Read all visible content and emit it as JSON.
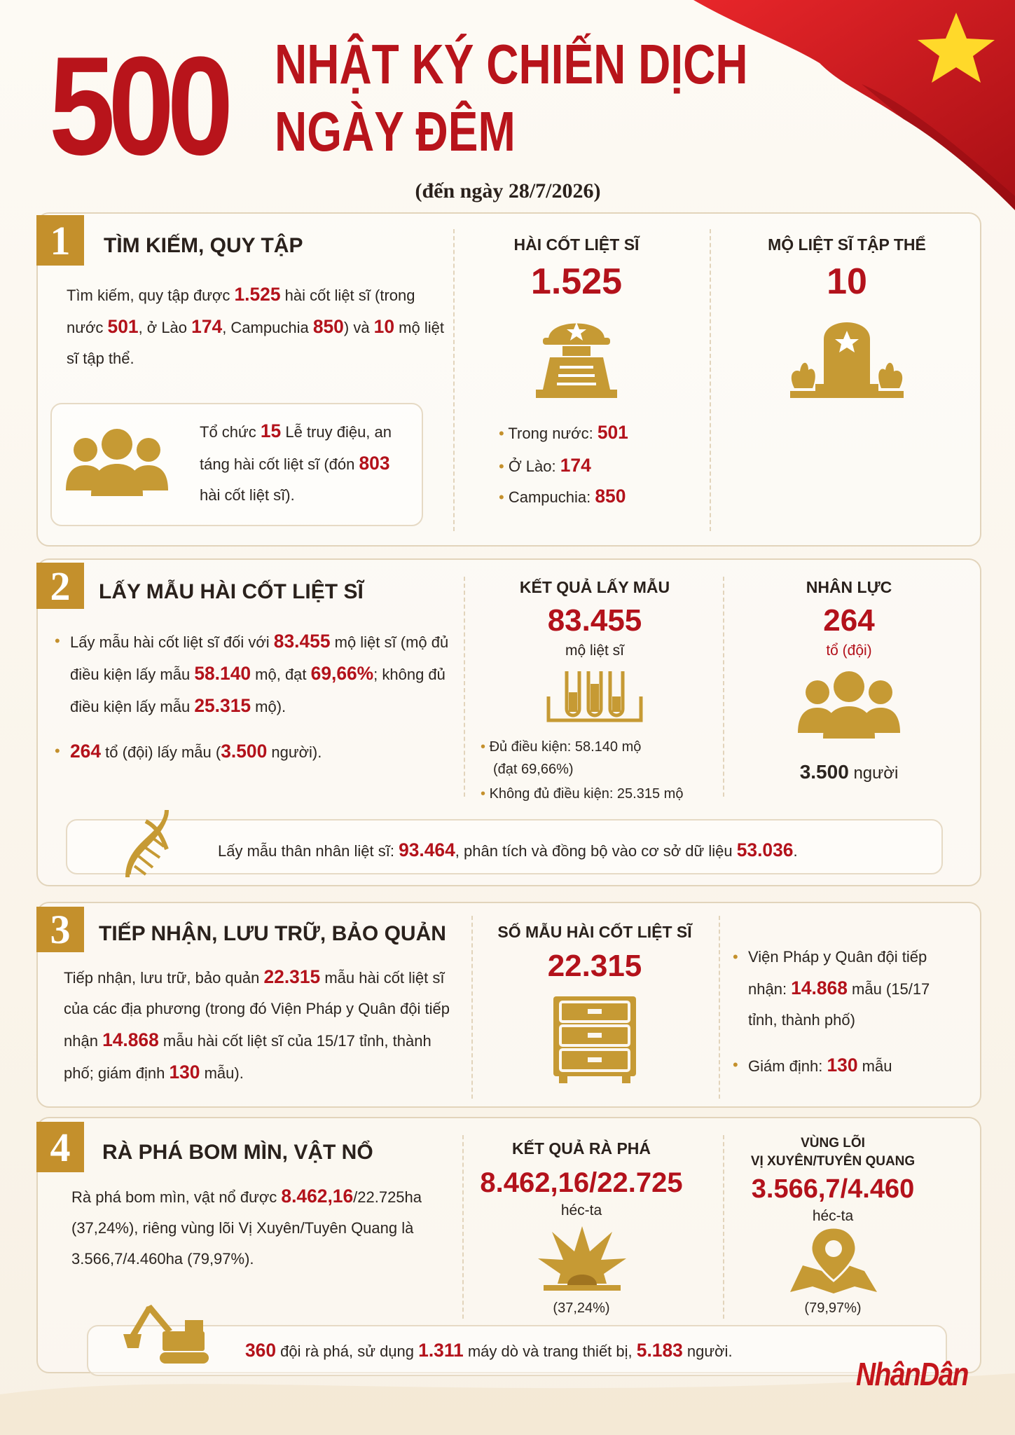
{
  "header": {
    "number": "500",
    "title_line1": "NHẬT KÝ CHIẾN DỊCH",
    "title_line2": "NGÀY ĐÊM",
    "date": "(đến ngày 28/7/2026)"
  },
  "sections": [
    {
      "index": "1",
      "title": "TÌM KIẾM, QUY TẬP",
      "text": [
        "Tìm kiếm, quy tập được ",
        "1.525",
        " hài cốt liệt sĩ (trong nước ",
        "501",
        ", ở Lào ",
        "174",
        ", Campuchia ",
        "850",
        ") và ",
        "10",
        " mộ liệt sĩ tập thể."
      ],
      "box": [
        "Tổ chức ",
        "15",
        " Lễ truy điệu, an táng hài cốt liệt sĩ (đón ",
        "803",
        " hài cốt liệt sĩ)."
      ],
      "stats": [
        {
          "label": "HÀI CỐT LIỆT SĨ",
          "value": "1.525",
          "items": [
            [
              "Trong nước: ",
              "501"
            ],
            [
              "Ở Lào: ",
              "174"
            ],
            [
              "Campuchia: ",
              "850"
            ]
          ]
        },
        {
          "label": "MỘ LIỆT SĨ TẬP THỂ",
          "value": "10"
        }
      ]
    },
    {
      "index": "2",
      "title": "LẤY MẪU HÀI CỐT LIỆT SĨ",
      "bullets": [
        [
          "Lấy mẫu hài cốt liệt sĩ đối với ",
          "83.455",
          " mộ liệt sĩ (mộ đủ điều kiện lấy mẫu ",
          "58.140",
          " mộ, đạt ",
          "69,66%",
          "; không đủ điều kiện lấy mẫu ",
          "25.315",
          " mộ)."
        ],
        [
          "264",
          " tổ (đội) lấy mẫu (",
          "3.500",
          " người)."
        ]
      ],
      "stats": [
        {
          "label": "KẾT QUẢ LẤY MẪU",
          "value": "83.455",
          "unit": "mộ liệt sĩ",
          "items": [
            "Đủ điều kiện: 58.140 mộ",
            "(đạt 69,66%)",
            "Không đủ điều kiện: 25.315 mộ"
          ]
        },
        {
          "label": "NHÂN LỰC",
          "value": "264",
          "unit": "tổ (đội)",
          "note": [
            "3.500",
            " người"
          ]
        }
      ],
      "box": [
        "Lấy mẫu thân nhân liệt sĩ: ",
        "93.464",
        ", phân tích và đồng bộ vào cơ sở dữ liệu ",
        "53.036",
        "."
      ]
    },
    {
      "index": "3",
      "title": "TIẾP NHẬN, LƯU TRỮ, BẢO QUẢN",
      "text": [
        "Tiếp nhận, lưu trữ, bảo quản ",
        "22.315",
        " mẫu hài cốt liệt sĩ của các địa phương (trong đó Viện Pháp y Quân đội tiếp nhận ",
        "14.868",
        " mẫu hài cốt liệt sĩ của 15/17 tỉnh, thành phố; giám định ",
        "130",
        " mẫu)."
      ],
      "stats": [
        {
          "label": "SỐ MẪU HÀI CỐT LIỆT SĨ",
          "value": "22.315"
        }
      ],
      "bullets": [
        [
          "Viện Pháp y Quân đội tiếp nhận: ",
          "14.868",
          " mẫu (15/17 tỉnh, thành phố)"
        ],
        [
          "Giám định: ",
          "130",
          " mẫu"
        ]
      ]
    },
    {
      "index": "4",
      "title": "RÀ PHÁ BOM MÌN, VẬT NỔ",
      "text": [
        "Rà phá bom mìn, vật nổ được ",
        "8.462,16",
        "/22.725ha (37,24%), riêng vùng lõi Vị Xuyên/Tuyên Quang là 3.566,7/4.460ha (79,97%)."
      ],
      "stats": [
        {
          "label": "KẾT QUẢ RÀ PHÁ",
          "value": "8.462,16/22.725",
          "unit": "héc-ta",
          "note": "(37,24%)"
        },
        {
          "label_line1": "VÙNG LÕI",
          "label_line2": "VỊ XUYÊN/TUYÊN QUANG",
          "value": "3.566,7/4.460",
          "unit": "héc-ta",
          "note": "(79,97%)"
        }
      ],
      "box": [
        "360",
        " đội rà phá, sử dụng ",
        "1.311",
        " máy dò và trang thiết bị, ",
        "5.183",
        " người."
      ]
    }
  ],
  "logo": "NhânDân"
}
